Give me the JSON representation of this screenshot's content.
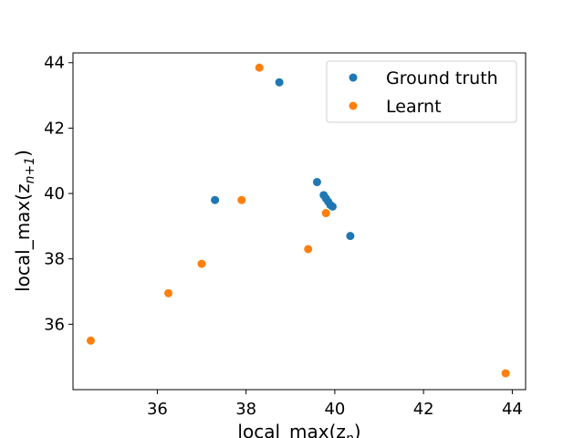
{
  "chart_data": {
    "type": "scatter",
    "title": "",
    "xlabel_main": "local_max(z",
    "xlabel_sub": "n",
    "xlabel_close": ")",
    "ylabel_main": "local_max(z",
    "ylabel_sub": "n+1",
    "ylabel_close": ")",
    "xlim": [
      34.1,
      44.3
    ],
    "ylim": [
      34.0,
      44.3
    ],
    "x_ticks": [
      36,
      38,
      40,
      42,
      44
    ],
    "y_ticks": [
      36,
      38,
      40,
      42,
      44
    ],
    "grid": false,
    "legend_position": "upper right",
    "series": [
      {
        "name": "Ground truth",
        "color": "#1f77b4",
        "points": [
          [
            37.3,
            39.8
          ],
          [
            38.75,
            43.4
          ],
          [
            39.6,
            40.35
          ],
          [
            39.75,
            39.95
          ],
          [
            39.8,
            39.85
          ],
          [
            39.85,
            39.75
          ],
          [
            39.9,
            39.65
          ],
          [
            39.95,
            39.6
          ],
          [
            40.35,
            38.7
          ]
        ]
      },
      {
        "name": "Learnt",
        "color": "#ff7f0e",
        "points": [
          [
            34.5,
            35.5
          ],
          [
            36.25,
            36.95
          ],
          [
            37.0,
            37.85
          ],
          [
            37.9,
            39.8
          ],
          [
            38.3,
            43.85
          ],
          [
            39.4,
            38.3
          ],
          [
            39.8,
            39.4
          ],
          [
            43.85,
            34.5
          ]
        ]
      }
    ]
  }
}
